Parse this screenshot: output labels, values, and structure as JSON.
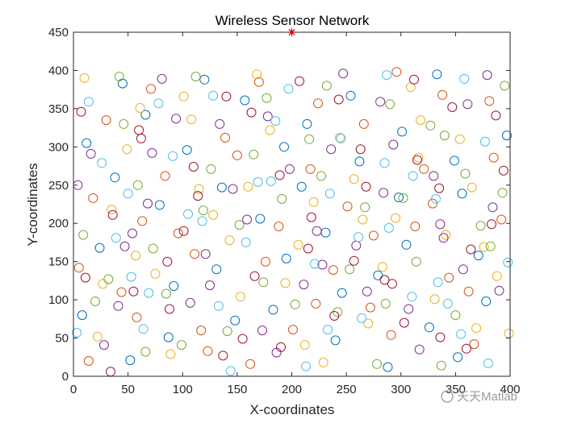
{
  "chart_data": {
    "type": "scatter",
    "title": "Wireless Sensor Network",
    "xlabel": "X-coordinates",
    "ylabel": "Y-coordinates",
    "xlim": [
      0,
      400
    ],
    "ylim": [
      0,
      450
    ],
    "xticks": [
      "0",
      "50",
      "100",
      "150",
      "200",
      "250",
      "300",
      "350",
      "400"
    ],
    "yticks": [
      "0",
      "50",
      "100",
      "150",
      "200",
      "250",
      "300",
      "350",
      "400",
      "450"
    ],
    "grid": false,
    "legend": "none",
    "sink": {
      "x": 200,
      "y": 450,
      "marker": "asterisk",
      "color": "#c00000"
    },
    "series": [
      {
        "color": "#0072BD",
        "values": [
          [
            12,
            305
          ],
          [
            38,
            260
          ],
          [
            66,
            342
          ],
          [
            92,
            118
          ],
          [
            120,
            388
          ],
          [
            148,
            73
          ],
          [
            171,
            206
          ],
          [
            195,
            154
          ],
          [
            214,
            330
          ],
          [
            240,
            47
          ],
          [
            262,
            281
          ],
          [
            288,
            12
          ],
          [
            305,
            172
          ],
          [
            333,
            395
          ],
          [
            356,
            239
          ],
          [
            378,
            98
          ],
          [
            397,
            315
          ],
          [
            24,
            168
          ],
          [
            52,
            21
          ],
          [
            79,
            224
          ],
          [
            104,
            296
          ],
          [
            131,
            140
          ],
          [
            157,
            361
          ],
          [
            183,
            87
          ],
          [
            209,
            248
          ],
          [
            231,
            188
          ],
          [
            254,
            367
          ],
          [
            279,
            132
          ],
          [
            301,
            320
          ],
          [
            326,
            64
          ],
          [
            349,
            282
          ],
          [
            371,
            158
          ],
          [
            8,
            80
          ],
          [
            45,
            383
          ],
          [
            87,
            51
          ],
          [
            136,
            247
          ],
          [
            193,
            300
          ],
          [
            246,
            109
          ],
          [
            298,
            234
          ],
          [
            352,
            25
          ]
        ]
      },
      {
        "color": "#D95319",
        "values": [
          [
            18,
            233
          ],
          [
            44,
            110
          ],
          [
            71,
            376
          ],
          [
            96,
            187
          ],
          [
            123,
            33
          ],
          [
            150,
            289
          ],
          [
            176,
            150
          ],
          [
            201,
            61
          ],
          [
            224,
            357
          ],
          [
            251,
            222
          ],
          [
            272,
            90
          ],
          [
            296,
            398
          ],
          [
            321,
            271
          ],
          [
            344,
            129
          ],
          [
            367,
            42
          ],
          [
            392,
            205
          ],
          [
            30,
            335
          ],
          [
            58,
            77
          ],
          [
            84,
            262
          ],
          [
            111,
            160
          ],
          [
            139,
            312
          ],
          [
            162,
            16
          ],
          [
            188,
            196
          ],
          [
            217,
            271
          ],
          [
            238,
            139
          ],
          [
            266,
            330
          ],
          [
            291,
            54
          ],
          [
            313,
            196
          ],
          [
            338,
            368
          ],
          [
            362,
            111
          ],
          [
            385,
            286
          ],
          [
            5,
            142
          ],
          [
            63,
            203
          ],
          [
            117,
            60
          ],
          [
            170,
            385
          ],
          [
            222,
            95
          ],
          [
            275,
            184
          ],
          [
            329,
            226
          ],
          [
            381,
            360
          ],
          [
            14,
            20
          ]
        ]
      },
      {
        "color": "#EDB120",
        "values": [
          [
            22,
            52
          ],
          [
            49,
            297
          ],
          [
            75,
            134
          ],
          [
            101,
            366
          ],
          [
            128,
            211
          ],
          [
            153,
            104
          ],
          [
            180,
            322
          ],
          [
            206,
            172
          ],
          [
            229,
            18
          ],
          [
            257,
            258
          ],
          [
            283,
            143
          ],
          [
            309,
            378
          ],
          [
            331,
            101
          ],
          [
            354,
            310
          ],
          [
            376,
            169
          ],
          [
            399,
            56
          ],
          [
            35,
            218
          ],
          [
            61,
            351
          ],
          [
            89,
            29
          ],
          [
            115,
            245
          ],
          [
            143,
            178
          ],
          [
            168,
            395
          ],
          [
            194,
            122
          ],
          [
            220,
            228
          ],
          [
            244,
            312
          ],
          [
            270,
            69
          ],
          [
            295,
            207
          ],
          [
            318,
            335
          ],
          [
            341,
            185
          ],
          [
            365,
            247
          ],
          [
            388,
            131
          ],
          [
            10,
            390
          ],
          [
            57,
            158
          ],
          [
            108,
            336
          ],
          [
            160,
            248
          ],
          [
            212,
            41
          ],
          [
            265,
            205
          ],
          [
            316,
            286
          ],
          [
            369,
            63
          ],
          [
            27,
            121
          ]
        ]
      },
      {
        "color": "#7E2F8E",
        "values": [
          [
            16,
            291
          ],
          [
            41,
            92
          ],
          [
            68,
            226
          ],
          [
            94,
            337
          ],
          [
            121,
            160
          ],
          [
            146,
            245
          ],
          [
            173,
            60
          ],
          [
            198,
            271
          ],
          [
            223,
            190
          ],
          [
            247,
            396
          ],
          [
            269,
            111
          ],
          [
            293,
            303
          ],
          [
            317,
            35
          ],
          [
            339,
            181
          ],
          [
            361,
            356
          ],
          [
            384,
            221
          ],
          [
            28,
            41
          ],
          [
            54,
            187
          ],
          [
            81,
            389
          ],
          [
            107,
            96
          ],
          [
            134,
            330
          ],
          [
            159,
            205
          ],
          [
            186,
            31
          ],
          [
            211,
            120
          ],
          [
            236,
            297
          ],
          [
            259,
            171
          ],
          [
            284,
            240
          ],
          [
            307,
            88
          ],
          [
            330,
            262
          ],
          [
            357,
            140
          ],
          [
            379,
            394
          ],
          [
            4,
            250
          ],
          [
            72,
            292
          ],
          [
            125,
            119
          ],
          [
            178,
            340
          ],
          [
            228,
            146
          ],
          [
            281,
            359
          ],
          [
            336,
            199
          ],
          [
            390,
            112
          ],
          [
            47,
            170
          ]
        ]
      },
      {
        "color": "#77AC30",
        "values": [
          [
            20,
            98
          ],
          [
            46,
            330
          ],
          [
            73,
            167
          ],
          [
            99,
            41
          ],
          [
            126,
            271
          ],
          [
            152,
            198
          ],
          [
            177,
            364
          ],
          [
            203,
            94
          ],
          [
            227,
            262
          ],
          [
            253,
            140
          ],
          [
            278,
            16
          ],
          [
            302,
            233
          ],
          [
            327,
            328
          ],
          [
            350,
            80
          ],
          [
            373,
            197
          ],
          [
            395,
            380
          ],
          [
            32,
            127
          ],
          [
            59,
            250
          ],
          [
            85,
            108
          ],
          [
            112,
            392
          ],
          [
            141,
            59
          ],
          [
            165,
            290
          ],
          [
            191,
            232
          ],
          [
            216,
            310
          ],
          [
            242,
            84
          ],
          [
            267,
            221
          ],
          [
            290,
            356
          ],
          [
            314,
            150
          ],
          [
            337,
            14
          ],
          [
            359,
            265
          ],
          [
            382,
            170
          ],
          [
            9,
            185
          ],
          [
            66,
            32
          ],
          [
            119,
            217
          ],
          [
            174,
            123
          ],
          [
            232,
            380
          ],
          [
            286,
            95
          ],
          [
            340,
            315
          ],
          [
            393,
            240
          ],
          [
            42,
            392
          ]
        ]
      },
      {
        "color": "#4DBEEE",
        "values": [
          [
            14,
            359
          ],
          [
            39,
            181
          ],
          [
            64,
            62
          ],
          [
            91,
            288
          ],
          [
            118,
            203
          ],
          [
            144,
            7
          ],
          [
            169,
            254
          ],
          [
            197,
            376
          ],
          [
            221,
            147
          ],
          [
            245,
            311
          ],
          [
            264,
            76
          ],
          [
            289,
            194
          ],
          [
            311,
            262
          ],
          [
            334,
            123
          ],
          [
            358,
            389
          ],
          [
            380,
            17
          ],
          [
            26,
            279
          ],
          [
            53,
            130
          ],
          [
            78,
            357
          ],
          [
            105,
            212
          ],
          [
            133,
            92
          ],
          [
            158,
            175
          ],
          [
            185,
            334
          ],
          [
            213,
            13
          ],
          [
            235,
            239
          ],
          [
            261,
            182
          ],
          [
            287,
            394
          ],
          [
            310,
            104
          ],
          [
            332,
            232
          ],
          [
            355,
            55
          ],
          [
            377,
            307
          ],
          [
            3,
            57
          ],
          [
            69,
            109
          ],
          [
            128,
            367
          ],
          [
            181,
            255
          ],
          [
            233,
            61
          ],
          [
            285,
            279
          ],
          [
            343,
            95
          ],
          [
            398,
            149
          ],
          [
            50,
            239
          ]
        ]
      },
      {
        "color": "#A2142F",
        "values": [
          [
            11,
            129
          ],
          [
            36,
            211
          ],
          [
            62,
            311
          ],
          [
            88,
            88
          ],
          [
            114,
            236
          ],
          [
            140,
            366
          ],
          [
            166,
            131
          ],
          [
            190,
            38
          ],
          [
            218,
            208
          ],
          [
            243,
            362
          ],
          [
            268,
            248
          ],
          [
            292,
            121
          ],
          [
            315,
            283
          ],
          [
            336,
            51
          ],
          [
            364,
            166
          ],
          [
            387,
            341
          ],
          [
            34,
            6
          ],
          [
            60,
            322
          ],
          [
            86,
            150
          ],
          [
            110,
            274
          ],
          [
            137,
            27
          ],
          [
            163,
            345
          ],
          [
            189,
            263
          ],
          [
            215,
            167
          ],
          [
            239,
            79
          ],
          [
            263,
            297
          ],
          [
            285,
            126
          ],
          [
            312,
            388
          ],
          [
            335,
            246
          ],
          [
            360,
            36
          ],
          [
            383,
            199
          ],
          [
            7,
            346
          ],
          [
            55,
            111
          ],
          [
            101,
            190
          ],
          [
            155,
            49
          ],
          [
            207,
            386
          ],
          [
            257,
            151
          ],
          [
            303,
            70
          ],
          [
            347,
            352
          ],
          [
            394,
            269
          ]
        ]
      }
    ]
  },
  "watermark": {
    "text": "天天Matlab"
  }
}
